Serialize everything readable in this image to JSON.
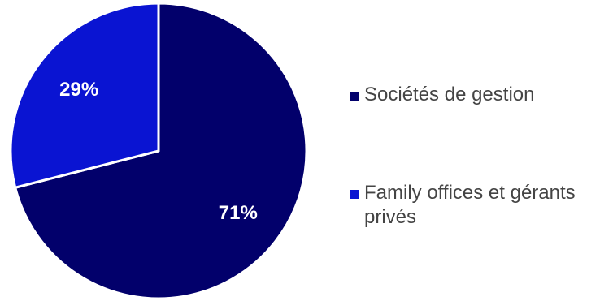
{
  "chart_data": {
    "type": "pie",
    "title": "",
    "slices": [
      {
        "label": "Sociétés de gestion",
        "value": 71,
        "display": "71%",
        "color": "#02006b"
      },
      {
        "label": "Family offices et gérants privés",
        "value": 29,
        "display": "29%",
        "color": "#0a14d2"
      }
    ],
    "legend_position": "right"
  }
}
